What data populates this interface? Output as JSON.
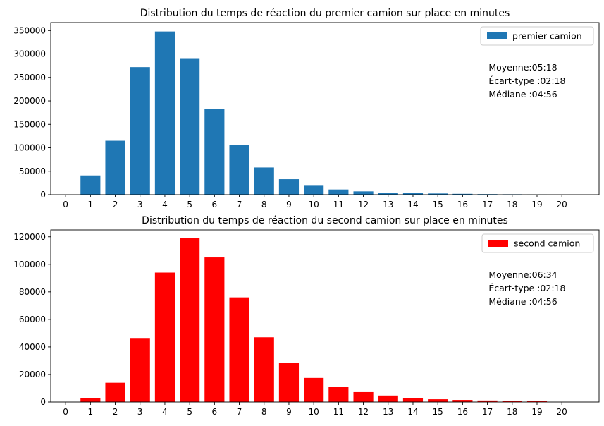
{
  "chart_data": [
    {
      "type": "bar",
      "title": "Distribution du temps de réaction du premier camion sur place en minutes",
      "xlabel": "",
      "ylabel": "",
      "color": "#1f77b4",
      "x_ticks": [
        0,
        1,
        2,
        3,
        4,
        5,
        6,
        7,
        8,
        9,
        10,
        11,
        12,
        13,
        14,
        15,
        16,
        17,
        18,
        19,
        20
      ],
      "y_ticks": [
        0,
        50000,
        100000,
        150000,
        200000,
        250000,
        300000,
        350000
      ],
      "ylim": [
        0,
        367000
      ],
      "xlim": [
        -0.6,
        21.5
      ],
      "grid": false,
      "legend_position": "top-right",
      "series": [
        {
          "name": "premier camion",
          "x": [
            1,
            2,
            3,
            4,
            5,
            6,
            7,
            8,
            9,
            10,
            11,
            12,
            13,
            14,
            15,
            16,
            17,
            18,
            19
          ],
          "values": [
            41000,
            115000,
            272000,
            348000,
            291000,
            182000,
            106000,
            58000,
            33000,
            19000,
            11000,
            7000,
            4500,
            3200,
            2500,
            1800,
            1200,
            900,
            300
          ]
        }
      ],
      "annotations": [
        "Moyenne:05:18",
        "Écart-type :02:18",
        "Médiane :04:56"
      ]
    },
    {
      "type": "bar",
      "title": "Distribution du temps de réaction du second camion sur place en minutes",
      "xlabel": "",
      "ylabel": "",
      "color": "#ff0000",
      "x_ticks": [
        0,
        1,
        2,
        3,
        4,
        5,
        6,
        7,
        8,
        9,
        10,
        11,
        12,
        13,
        14,
        15,
        16,
        17,
        18,
        19,
        20
      ],
      "y_ticks": [
        0,
        20000,
        40000,
        60000,
        80000,
        100000,
        120000
      ],
      "ylim": [
        0,
        125000
      ],
      "xlim": [
        -0.6,
        21.5
      ],
      "grid": false,
      "legend_position": "top-right",
      "series": [
        {
          "name": "second camion",
          "x": [
            1,
            2,
            3,
            4,
            5,
            6,
            7,
            8,
            9,
            10,
            11,
            12,
            13,
            14,
            15,
            16,
            17,
            18,
            19
          ],
          "values": [
            2800,
            14000,
            46500,
            94000,
            119000,
            105000,
            76000,
            47000,
            28500,
            17500,
            11000,
            7200,
            4700,
            3000,
            2000,
            1500,
            1100,
            1000,
            1000
          ]
        }
      ],
      "annotations": [
        "Moyenne:06:34",
        "Écart-type :02:18",
        "Médiane :04:56"
      ]
    }
  ]
}
